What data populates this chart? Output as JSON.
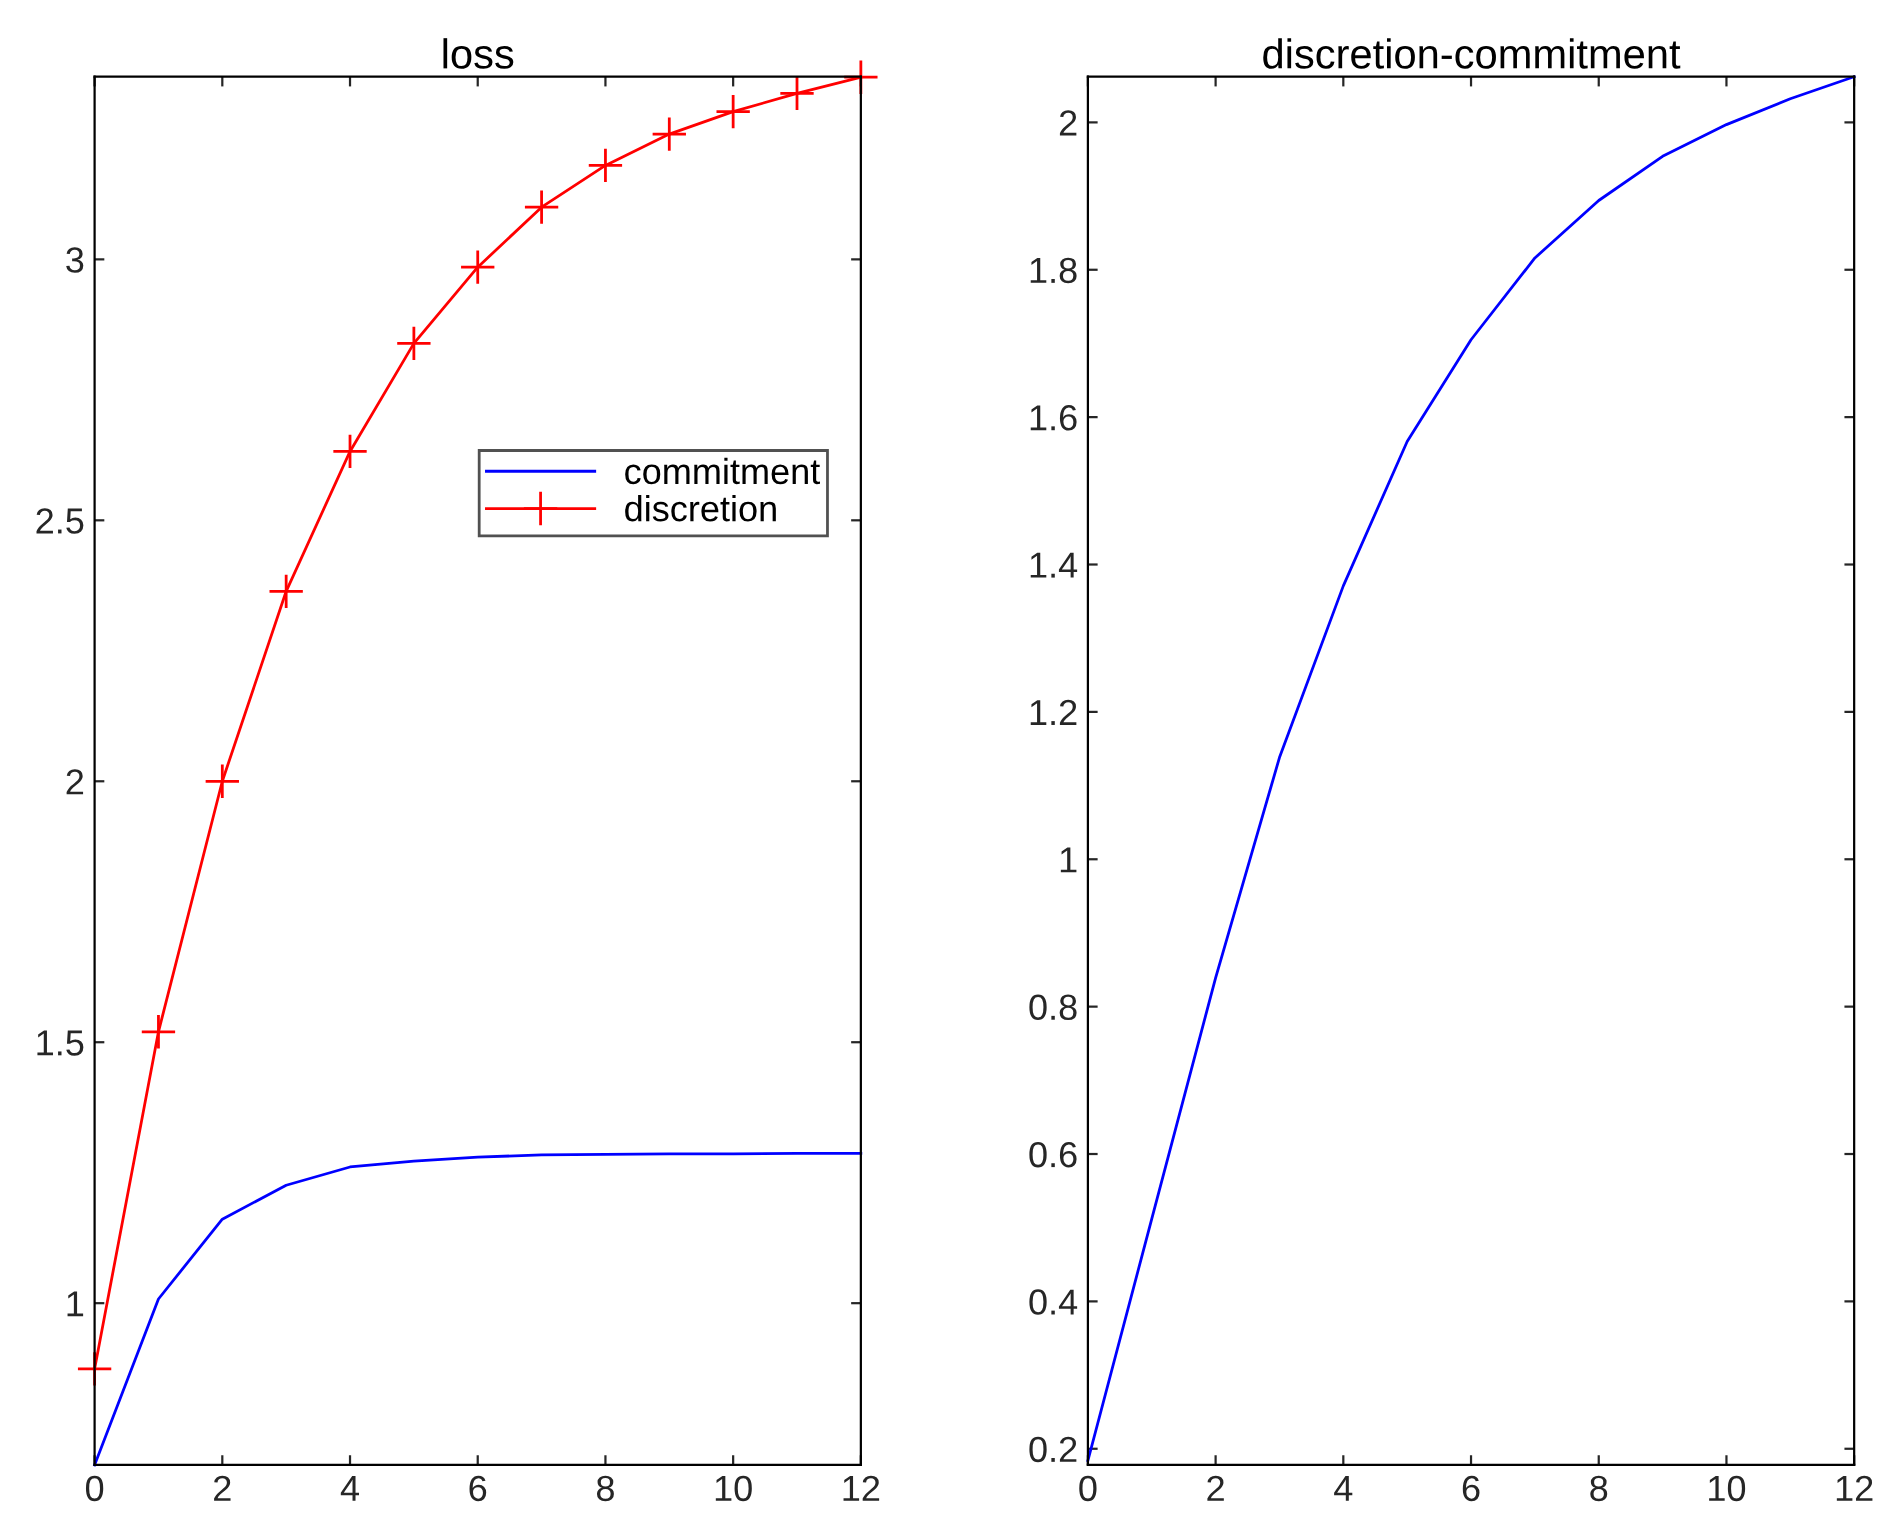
{
  "chart_data": [
    {
      "type": "line",
      "title": "loss",
      "x": [
        0,
        1,
        2,
        3,
        4,
        5,
        6,
        7,
        8,
        9,
        10,
        11,
        12
      ],
      "xlim": [
        0,
        12
      ],
      "xticks": [
        0,
        2,
        4,
        6,
        8,
        10,
        12
      ],
      "ylim": [
        0.69,
        3.35
      ],
      "yticks": [
        1,
        1.5,
        2,
        2.5,
        3
      ],
      "legend": "right",
      "grid": false,
      "series": [
        {
          "name": "commitment",
          "color": "#0000ff",
          "marker": "none",
          "values": [
            0.69,
            1.008,
            1.161,
            1.226,
            1.261,
            1.272,
            1.28,
            1.284,
            1.285,
            1.286,
            1.286,
            1.287,
            1.287
          ]
        },
        {
          "name": "discretion",
          "color": "#ff0000",
          "marker": "cross",
          "values": [
            0.874,
            1.52,
            2.0,
            2.364,
            2.632,
            2.839,
            2.985,
            3.1,
            3.18,
            3.24,
            3.283,
            3.318,
            3.349
          ]
        }
      ]
    },
    {
      "type": "line",
      "title": "discretion-commitment",
      "x": [
        0,
        1,
        2,
        3,
        4,
        5,
        6,
        7,
        8,
        9,
        10,
        11,
        12
      ],
      "xlim": [
        0,
        12
      ],
      "xticks": [
        0,
        2,
        4,
        6,
        8,
        10,
        12
      ],
      "ylim": [
        0.178,
        2.062
      ],
      "yticks": [
        0.2,
        0.4,
        0.6,
        0.8,
        1,
        1.2,
        1.4,
        1.6,
        1.8,
        2
      ],
      "legend": false,
      "grid": false,
      "series": [
        {
          "color": "#0000ff",
          "marker": "none",
          "values": [
            0.184,
            0.512,
            0.839,
            1.138,
            1.371,
            1.567,
            1.705,
            1.816,
            1.894,
            1.954,
            1.997,
            2.032,
            2.062
          ]
        }
      ]
    }
  ]
}
